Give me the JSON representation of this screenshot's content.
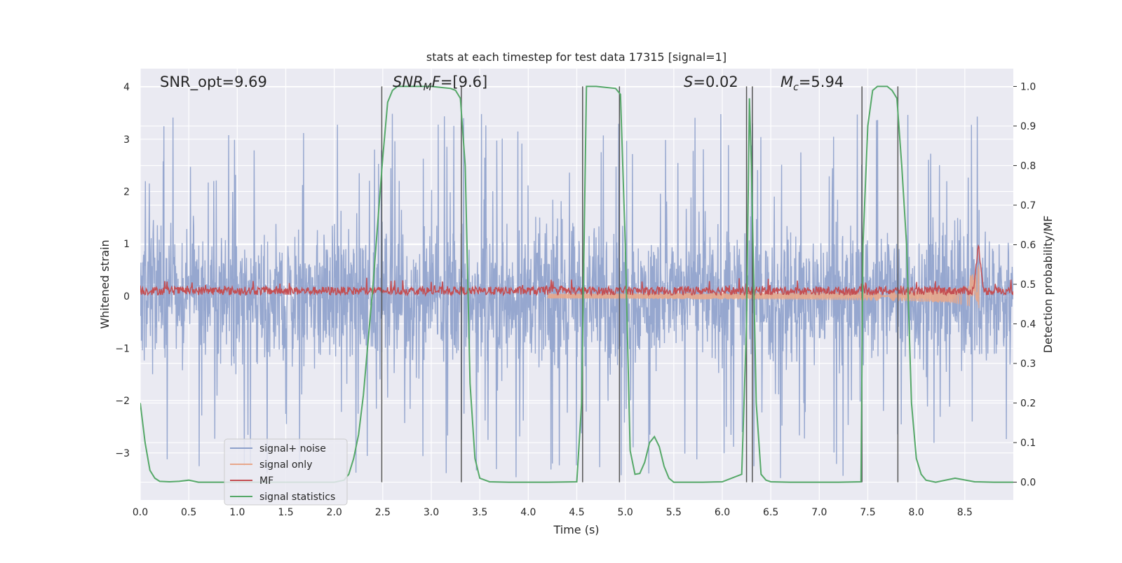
{
  "chart_data": {
    "type": "line",
    "title": "stats at each timestep for test data 17315 [signal=1]",
    "xlabel": "Time (s)",
    "ylabel_left": "Whitened strain",
    "ylabel_right": "Detection probability/MF",
    "xlim": [
      0.0,
      9.0
    ],
    "ylim_left": [
      -3.9,
      4.35
    ],
    "ylim_right": [
      -0.045,
      1.045
    ],
    "xticks": [
      "0.0",
      "0.5",
      "1.0",
      "1.5",
      "2.0",
      "2.5",
      "3.0",
      "3.5",
      "4.0",
      "4.5",
      "5.0",
      "5.5",
      "6.0",
      "6.5",
      "7.0",
      "7.5",
      "8.0",
      "8.5"
    ],
    "yticks_left": [
      "4",
      "3",
      "2",
      "1",
      "0",
      "−1",
      "−2",
      "−3"
    ],
    "yticks_right": [
      "1.0",
      "0.9",
      "0.8",
      "0.7",
      "0.6",
      "0.5",
      "0.4",
      "0.3",
      "0.2",
      "0.1",
      "0.0"
    ],
    "annotations": {
      "snr_opt": "SNR_opt=9.69",
      "snr_mf_italic": "SNR",
      "snr_mf_sub": "M",
      "snr_mf_italic2": "F",
      "snr_mf_rest": "=[9.6]",
      "s_italic": "S",
      "s_rest": "=0.02",
      "mc_italic": "M",
      "mc_sub": "c",
      "mc_rest": "=5.94"
    },
    "legend": {
      "placement": "lower-left",
      "entries": [
        "signal+ noise",
        "signal only",
        "MF",
        "signal statistics"
      ]
    },
    "series": [
      {
        "name": "signal+ noise",
        "color": "#8da0cb",
        "axis": "left",
        "description": "noise band approx ±1.6 with spikes up to ±4"
      },
      {
        "name": "signal only",
        "color": "#e8a78a",
        "axis": "left",
        "chirp_end_time": 8.65,
        "chirp_end_amplitude": 1.0
      },
      {
        "name": "MF",
        "color": "#c44e52",
        "axis": "left",
        "baseline": 0.1,
        "peak_time": 8.64,
        "peak_value": 1.0
      },
      {
        "name": "signal statistics",
        "color": "#55a868",
        "axis": "right",
        "x": [
          0.0,
          0.05,
          0.1,
          0.15,
          0.2,
          0.3,
          0.4,
          0.5,
          0.6,
          0.8,
          1.0,
          1.2,
          1.5,
          1.8,
          2.0,
          2.1,
          2.15,
          2.2,
          2.25,
          2.3,
          2.35,
          2.4,
          2.45,
          2.5,
          2.55,
          2.6,
          2.65,
          2.7,
          2.8,
          3.0,
          3.2,
          3.25,
          3.3,
          3.35,
          3.4,
          3.45,
          3.5,
          3.6,
          3.8,
          4.0,
          4.2,
          4.5,
          4.55,
          4.6,
          4.65,
          4.7,
          4.9,
          4.95,
          5.0,
          5.05,
          5.1,
          5.15,
          5.2,
          5.25,
          5.3,
          5.35,
          5.4,
          5.45,
          5.5,
          5.6,
          5.8,
          6.0,
          6.2,
          6.25,
          6.28,
          6.3,
          6.35,
          6.4,
          6.45,
          6.5,
          6.7,
          7.0,
          7.2,
          7.43,
          7.45,
          7.5,
          7.55,
          7.6,
          7.7,
          7.75,
          7.8,
          7.85,
          7.9,
          7.95,
          8.0,
          8.05,
          8.1,
          8.2,
          8.4,
          8.6,
          8.8,
          9.0
        ],
        "values": [
          0.2,
          0.1,
          0.03,
          0.01,
          0.002,
          0.001,
          0.002,
          0.005,
          0.0,
          0.0,
          0.0,
          0.0,
          0.0,
          0.0,
          0.0,
          0.005,
          0.02,
          0.06,
          0.12,
          0.22,
          0.36,
          0.5,
          0.66,
          0.82,
          0.96,
          0.99,
          1.0,
          1.0,
          1.0,
          1.0,
          0.995,
          0.99,
          0.97,
          0.8,
          0.25,
          0.06,
          0.01,
          0.001,
          0.0,
          0.0,
          0.0,
          0.001,
          0.2,
          1.0,
          1.0,
          1.0,
          0.995,
          0.98,
          0.6,
          0.08,
          0.02,
          0.022,
          0.05,
          0.1,
          0.115,
          0.09,
          0.04,
          0.01,
          0.0,
          0.0,
          0.0,
          0.001,
          0.02,
          0.4,
          0.97,
          0.8,
          0.2,
          0.02,
          0.005,
          0.001,
          0.0,
          0.0,
          0.0,
          0.001,
          0.6,
          0.9,
          0.99,
          1.0,
          1.0,
          0.99,
          0.97,
          0.8,
          0.6,
          0.2,
          0.06,
          0.02,
          0.005,
          0.0,
          0.01,
          0.001,
          0.0,
          0.0
        ]
      }
    ],
    "vlines": [
      2.49,
      3.31,
      4.56,
      4.94,
      6.25,
      6.31,
      7.44,
      7.81
    ]
  }
}
